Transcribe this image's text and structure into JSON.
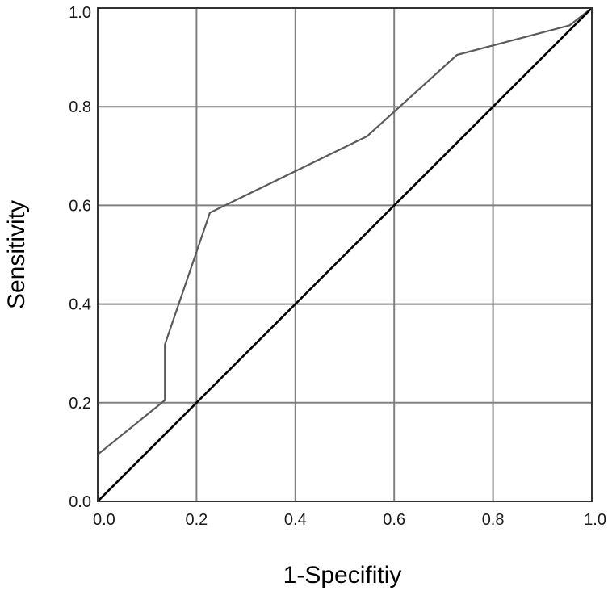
{
  "chart_data": {
    "type": "line",
    "title": "",
    "xlabel": "1-Specifitiy",
    "ylabel": "Sensitivity",
    "xlim": [
      0.0,
      1.0
    ],
    "ylim": [
      0.0,
      1.0
    ],
    "xticks": [
      "0.0",
      "0.2",
      "0.4",
      "0.6",
      "0.8",
      "1.0"
    ],
    "yticks": [
      "0.0",
      "0.2",
      "0.4",
      "0.6",
      "0.8",
      "1.0"
    ],
    "grid": true,
    "legend": "none",
    "series": [
      {
        "color": "#5a5a5a",
        "points": [
          [
            0.0,
            0.095
          ],
          [
            0.136,
            0.205
          ],
          [
            0.136,
            0.318
          ],
          [
            0.227,
            0.585
          ],
          [
            0.545,
            0.74
          ],
          [
            0.727,
            0.905
          ],
          [
            0.955,
            0.965
          ],
          [
            1.0,
            1.0
          ]
        ]
      },
      {
        "color": "#000000",
        "points": [
          [
            0.0,
            0.0
          ],
          [
            1.0,
            1.0
          ]
        ]
      }
    ]
  }
}
